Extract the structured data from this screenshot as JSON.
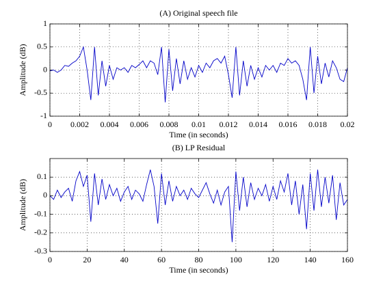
{
  "chart_data": [
    {
      "type": "line",
      "title": "(A) Original speech file",
      "x_label": "Time (in seconds)",
      "y_label": "Amplitude (dB)",
      "x": [
        0,
        0.00025,
        0.0005,
        0.00075,
        0.001,
        0.00125,
        0.0015,
        0.00175,
        0.002,
        0.00225,
        0.0025,
        0.00275,
        0.003,
        0.00325,
        0.0035,
        0.00375,
        0.004,
        0.00425,
        0.0045,
        0.00475,
        0.005,
        0.00525,
        0.0055,
        0.00575,
        0.006,
        0.00625,
        0.0065,
        0.00675,
        0.007,
        0.00725,
        0.0075,
        0.00775,
        0.008,
        0.00825,
        0.0085,
        0.00875,
        0.009,
        0.00925,
        0.0095,
        0.00975,
        0.01,
        0.01025,
        0.0105,
        0.01075,
        0.011,
        0.01125,
        0.0115,
        0.01175,
        0.012,
        0.01225,
        0.0125,
        0.01275,
        0.013,
        0.01325,
        0.0135,
        0.01375,
        0.014,
        0.01425,
        0.0145,
        0.01475,
        0.015,
        0.01525,
        0.0155,
        0.01575,
        0.016,
        0.01625,
        0.0165,
        0.01675,
        0.017,
        0.01725,
        0.0175,
        0.01775,
        0.018,
        0.01825,
        0.0185,
        0.01875,
        0.019,
        0.01925,
        0.0195,
        0.01975,
        0.02
      ],
      "values": [
        -0.02,
        0.0,
        -0.05,
        0.0,
        0.1,
        0.08,
        0.15,
        0.2,
        0.3,
        0.5,
        0.0,
        -0.65,
        0.5,
        -0.55,
        0.2,
        -0.35,
        0.1,
        -0.2,
        0.05,
        0.0,
        0.05,
        -0.05,
        0.1,
        0.05,
        0.12,
        0.2,
        0.05,
        0.2,
        0.15,
        -0.1,
        0.5,
        -0.7,
        0.45,
        -0.45,
        0.25,
        -0.3,
        0.2,
        -0.2,
        0.05,
        -0.15,
        0.1,
        -0.05,
        0.15,
        0.05,
        0.2,
        0.25,
        0.15,
        0.3,
        -0.1,
        -0.6,
        0.5,
        -0.55,
        0.2,
        -0.35,
        0.1,
        -0.2,
        0.05,
        -0.15,
        0.1,
        0.0,
        0.1,
        -0.05,
        0.15,
        0.1,
        0.25,
        0.15,
        0.2,
        0.1,
        -0.2,
        -0.65,
        0.5,
        -0.5,
        0.3,
        -0.3,
        0.15,
        -0.15,
        0.2,
        0.05,
        -0.2,
        -0.25,
        0.05
      ],
      "color": "#0000c8",
      "xlim": [
        0,
        0.02
      ],
      "xticks": [
        0,
        0.002,
        0.004,
        0.006,
        0.008,
        0.01,
        0.012,
        0.014,
        0.016,
        0.018,
        0.02
      ],
      "ylim": [
        -1,
        1
      ],
      "yticks": [
        -1,
        -0.5,
        0,
        0.5,
        1
      ],
      "grid": true
    },
    {
      "type": "line",
      "title": "(B) LP Residual",
      "x_label": "Time (in seconds)",
      "y_label": "Amplitude (dB)",
      "x": [
        0,
        2,
        4,
        6,
        8,
        10,
        12,
        14,
        16,
        18,
        20,
        22,
        24,
        26,
        28,
        30,
        32,
        34,
        36,
        38,
        40,
        42,
        44,
        46,
        48,
        50,
        52,
        54,
        56,
        58,
        60,
        62,
        64,
        66,
        68,
        70,
        72,
        74,
        76,
        78,
        80,
        82,
        84,
        86,
        88,
        90,
        92,
        94,
        96,
        98,
        100,
        102,
        104,
        106,
        108,
        110,
        112,
        114,
        116,
        118,
        120,
        122,
        124,
        126,
        128,
        130,
        132,
        134,
        136,
        138,
        140,
        142,
        144,
        146,
        148,
        150,
        152,
        154,
        156,
        158,
        160
      ],
      "values": [
        0,
        -0.02,
        0.03,
        -0.01,
        0.02,
        0.04,
        -0.03,
        0.08,
        0.13,
        0.05,
        0.11,
        -0.14,
        0.12,
        -0.05,
        0.09,
        -0.02,
        0.06,
        0.0,
        0.04,
        -0.03,
        0.02,
        0.05,
        -0.02,
        0.03,
        0.01,
        -0.03,
        0.06,
        0.14,
        0.05,
        -0.15,
        0.12,
        -0.05,
        0.08,
        -0.03,
        0.05,
        0.0,
        0.03,
        -0.02,
        0.04,
        0.01,
        -0.01,
        0.03,
        0.07,
        0.01,
        -0.04,
        0.03,
        -0.05,
        0.02,
        0.05,
        -0.25,
        0.13,
        -0.08,
        0.1,
        -0.06,
        0.07,
        -0.02,
        0.04,
        0.0,
        0.06,
        -0.03,
        0.05,
        -0.02,
        0.08,
        0.02,
        0.12,
        -0.05,
        0.08,
        -0.1,
        0.06,
        -0.18,
        0.12,
        -0.08,
        0.14,
        -0.06,
        0.1,
        -0.04,
        0.11,
        -0.13,
        0.07,
        -0.05,
        -0.02
      ],
      "color": "#0000c8",
      "xlim": [
        0,
        160
      ],
      "xticks": [
        0,
        20,
        40,
        60,
        80,
        100,
        120,
        140,
        160
      ],
      "ylim": [
        -0.3,
        0.2
      ],
      "yticks": [
        -0.3,
        -0.2,
        -0.1,
        0,
        0.1
      ],
      "grid": true
    }
  ]
}
